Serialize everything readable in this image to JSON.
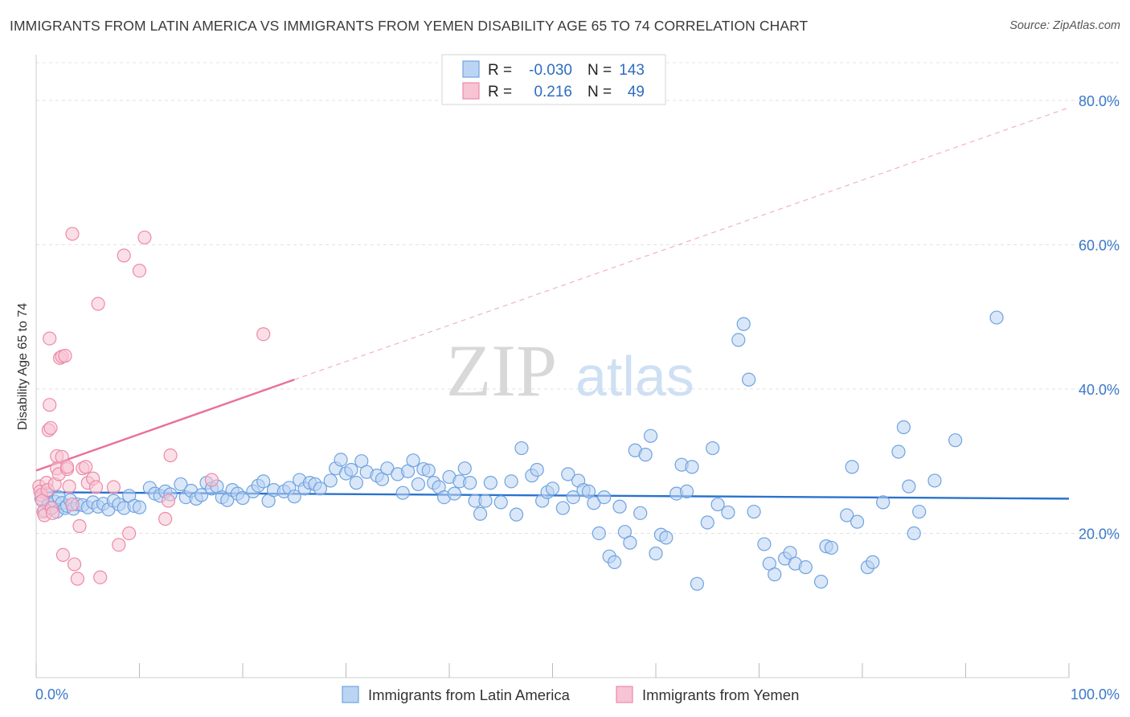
{
  "title": "IMMIGRANTS FROM LATIN AMERICA VS IMMIGRANTS FROM YEMEN DISABILITY AGE 65 TO 74 CORRELATION CHART",
  "source": "Source: ZipAtlas.com",
  "watermark": {
    "zip": "ZIP",
    "atlas": "atlas"
  },
  "colors": {
    "blue": "#6fa3e0",
    "blue_fill": "#bcd4f3",
    "blue_line": "#2a72cf",
    "pink": "#ec8aa9",
    "pink_fill": "#f7c4d4",
    "pink_line": "#e8709a",
    "tick_text": "#3a78c9",
    "grid": "#dddddd"
  },
  "legend": {
    "rows": [
      {
        "r_label": "R =",
        "r_value": "-0.030",
        "n_label": "N =",
        "n_value": "143"
      },
      {
        "r_label": "R =",
        "r_value": "0.216",
        "n_label": "N =",
        "n_value": "49"
      }
    ]
  },
  "chart_data": {
    "type": "scatter",
    "title": "IMMIGRANTS FROM LATIN AMERICA VS IMMIGRANTS FROM YEMEN DISABILITY AGE 65 TO 74 CORRELATION CHART",
    "xlabel": "",
    "ylabel": "Disability Age 65 to 74",
    "xlim": [
      0,
      100
    ],
    "ylim": [
      0,
      85
    ],
    "x_tick_labels": [
      "0.0%",
      "100.0%"
    ],
    "y_ticks": [
      20,
      40,
      60,
      80
    ],
    "y_tick_labels": [
      "20.0%",
      "40.0%",
      "60.0%",
      "80.0%"
    ],
    "grid": true,
    "legend_position": "top-center",
    "series": [
      {
        "name": "Immigrants from Latin America",
        "color": "#6fa3e0",
        "R": -0.03,
        "N": 143,
        "trend": {
          "x": [
            0,
            100
          ],
          "y": [
            25.7,
            24.8
          ],
          "style": "solid"
        },
        "points": [
          [
            0.5,
            24.8
          ],
          [
            0.8,
            23.2
          ],
          [
            1.0,
            25.5
          ],
          [
            1.2,
            24.1
          ],
          [
            1.5,
            23.6
          ],
          [
            1.8,
            24.4
          ],
          [
            2.0,
            23.0
          ],
          [
            2.2,
            25.0
          ],
          [
            2.5,
            24.2
          ],
          [
            2.8,
            23.5
          ],
          [
            3.0,
            23.8
          ],
          [
            3.3,
            24.6
          ],
          [
            3.6,
            23.4
          ],
          [
            4.0,
            24.0
          ],
          [
            4.5,
            23.9
          ],
          [
            5.0,
            23.6
          ],
          [
            5.5,
            24.3
          ],
          [
            6.0,
            23.7
          ],
          [
            6.5,
            24.1
          ],
          [
            7.0,
            23.3
          ],
          [
            7.5,
            24.5
          ],
          [
            8.0,
            24.0
          ],
          [
            8.5,
            23.5
          ],
          [
            9.0,
            25.2
          ],
          [
            9.5,
            23.8
          ],
          [
            10.0,
            23.6
          ],
          [
            11.0,
            26.3
          ],
          [
            11.5,
            25.5
          ],
          [
            12.0,
            25.2
          ],
          [
            12.5,
            25.8
          ],
          [
            13.0,
            25.4
          ],
          [
            14.0,
            26.8
          ],
          [
            14.5,
            25.0
          ],
          [
            15.0,
            25.9
          ],
          [
            15.5,
            24.8
          ],
          [
            16.0,
            25.3
          ],
          [
            16.5,
            27.0
          ],
          [
            17.0,
            26.2
          ],
          [
            17.5,
            26.5
          ],
          [
            18.0,
            25.0
          ],
          [
            18.5,
            24.6
          ],
          [
            19.0,
            26.0
          ],
          [
            19.5,
            25.5
          ],
          [
            20.0,
            24.9
          ],
          [
            21.0,
            25.8
          ],
          [
            21.5,
            26.6
          ],
          [
            22.0,
            27.2
          ],
          [
            22.5,
            24.5
          ],
          [
            23.0,
            26.0
          ],
          [
            24.0,
            25.8
          ],
          [
            24.5,
            26.3
          ],
          [
            25.0,
            25.1
          ],
          [
            25.5,
            27.4
          ],
          [
            26.0,
            26.2
          ],
          [
            26.5,
            27.0
          ],
          [
            27.0,
            26.8
          ],
          [
            27.5,
            26.2
          ],
          [
            28.5,
            27.3
          ],
          [
            29.0,
            29.0
          ],
          [
            29.5,
            30.2
          ],
          [
            30.0,
            28.3
          ],
          [
            30.5,
            28.8
          ],
          [
            31.0,
            27.0
          ],
          [
            31.5,
            30.0
          ],
          [
            32.0,
            28.5
          ],
          [
            33.0,
            28.0
          ],
          [
            33.5,
            27.5
          ],
          [
            34.0,
            29.0
          ],
          [
            35.0,
            28.2
          ],
          [
            35.5,
            25.6
          ],
          [
            36.0,
            28.6
          ],
          [
            36.5,
            30.1
          ],
          [
            37.0,
            26.8
          ],
          [
            37.5,
            28.9
          ],
          [
            38.0,
            28.7
          ],
          [
            38.5,
            27.0
          ],
          [
            39.0,
            26.4
          ],
          [
            39.5,
            25.0
          ],
          [
            40.0,
            27.8
          ],
          [
            40.5,
            25.5
          ],
          [
            41.0,
            27.2
          ],
          [
            41.5,
            29.0
          ],
          [
            42.0,
            27.0
          ],
          [
            42.5,
            24.5
          ],
          [
            43.0,
            22.7
          ],
          [
            43.5,
            24.5
          ],
          [
            44.0,
            27.0
          ],
          [
            45.0,
            24.3
          ],
          [
            46.0,
            27.2
          ],
          [
            46.5,
            22.6
          ],
          [
            47.0,
            31.8
          ],
          [
            48.0,
            28.0
          ],
          [
            48.5,
            28.8
          ],
          [
            49.0,
            24.5
          ],
          [
            49.5,
            25.7
          ],
          [
            50.0,
            26.2
          ],
          [
            51.0,
            23.5
          ],
          [
            51.5,
            28.2
          ],
          [
            52.0,
            25.0
          ],
          [
            52.5,
            27.3
          ],
          [
            53.0,
            26.0
          ],
          [
            53.5,
            25.8
          ],
          [
            54.0,
            24.2
          ],
          [
            54.5,
            20.0
          ],
          [
            55.0,
            25.0
          ],
          [
            55.5,
            16.8
          ],
          [
            56.0,
            16.0
          ],
          [
            56.5,
            23.7
          ],
          [
            57.0,
            20.2
          ],
          [
            57.5,
            18.7
          ],
          [
            58.0,
            31.5
          ],
          [
            58.5,
            22.8
          ],
          [
            59.0,
            30.9
          ],
          [
            59.5,
            33.5
          ],
          [
            60.0,
            17.2
          ],
          [
            60.5,
            19.8
          ],
          [
            61.0,
            19.4
          ],
          [
            62.0,
            25.5
          ],
          [
            62.5,
            29.5
          ],
          [
            63.0,
            25.8
          ],
          [
            63.5,
            29.2
          ],
          [
            64.0,
            13.0
          ],
          [
            65.0,
            21.5
          ],
          [
            65.5,
            31.8
          ],
          [
            66.0,
            24.0
          ],
          [
            67.0,
            22.9
          ],
          [
            68.0,
            46.8
          ],
          [
            68.5,
            49.0
          ],
          [
            69.0,
            41.3
          ],
          [
            69.5,
            23.0
          ],
          [
            70.5,
            18.5
          ],
          [
            71.0,
            15.8
          ],
          [
            71.5,
            14.3
          ],
          [
            72.5,
            16.5
          ],
          [
            73.0,
            17.3
          ],
          [
            73.5,
            15.8
          ],
          [
            74.5,
            15.3
          ],
          [
            76.0,
            13.3
          ],
          [
            76.5,
            18.2
          ],
          [
            77.0,
            18.0
          ],
          [
            78.5,
            22.5
          ],
          [
            79.0,
            29.2
          ],
          [
            79.5,
            21.6
          ],
          [
            80.5,
            15.3
          ],
          [
            81.0,
            16.0
          ],
          [
            82.0,
            24.3
          ],
          [
            83.5,
            31.3
          ],
          [
            84.0,
            34.7
          ],
          [
            84.5,
            26.5
          ],
          [
            85.0,
            20.0
          ],
          [
            85.5,
            23.0
          ],
          [
            87.0,
            27.3
          ],
          [
            89.0,
            32.9
          ],
          [
            93.0,
            49.9
          ]
        ]
      },
      {
        "name": "Immigrants from Yemen",
        "color": "#ec8aa9",
        "R": 0.216,
        "N": 49,
        "trend": {
          "x": [
            0,
            25
          ],
          "y": [
            28.7,
            41.3
          ],
          "style": "solid",
          "extended": {
            "x": [
              25,
              100
            ],
            "y": [
              41.3,
              79.0
            ],
            "style": "dashed"
          }
        },
        "points": [
          [
            0.3,
            26.5
          ],
          [
            0.4,
            25.8
          ],
          [
            0.5,
            25.3
          ],
          [
            0.6,
            24.5
          ],
          [
            0.7,
            23.0
          ],
          [
            0.8,
            22.5
          ],
          [
            1.0,
            27.0
          ],
          [
            1.1,
            26.0
          ],
          [
            1.2,
            34.3
          ],
          [
            1.3,
            37.8
          ],
          [
            1.3,
            47.0
          ],
          [
            1.4,
            34.6
          ],
          [
            1.5,
            23.5
          ],
          [
            1.6,
            22.8
          ],
          [
            1.8,
            26.8
          ],
          [
            2.0,
            30.7
          ],
          [
            2.0,
            29.0
          ],
          [
            2.2,
            28.2
          ],
          [
            2.3,
            44.3
          ],
          [
            2.5,
            44.5
          ],
          [
            2.5,
            30.6
          ],
          [
            2.6,
            17.0
          ],
          [
            2.8,
            44.6
          ],
          [
            3.0,
            28.9
          ],
          [
            3.0,
            29.2
          ],
          [
            3.2,
            26.5
          ],
          [
            3.5,
            24.0
          ],
          [
            3.5,
            61.5
          ],
          [
            3.7,
            15.7
          ],
          [
            4.0,
            13.7
          ],
          [
            4.2,
            21.0
          ],
          [
            4.5,
            29.0
          ],
          [
            4.8,
            29.2
          ],
          [
            5.0,
            27.0
          ],
          [
            5.5,
            27.6
          ],
          [
            5.8,
            26.4
          ],
          [
            6.0,
            51.8
          ],
          [
            6.2,
            13.9
          ],
          [
            7.5,
            26.4
          ],
          [
            8.0,
            18.4
          ],
          [
            8.5,
            58.5
          ],
          [
            9.0,
            20.0
          ],
          [
            10.0,
            56.4
          ],
          [
            10.5,
            61.0
          ],
          [
            12.5,
            22.0
          ],
          [
            12.8,
            24.5
          ],
          [
            13.0,
            30.8
          ],
          [
            17.0,
            27.4
          ],
          [
            22.0,
            47.6
          ]
        ]
      }
    ]
  }
}
